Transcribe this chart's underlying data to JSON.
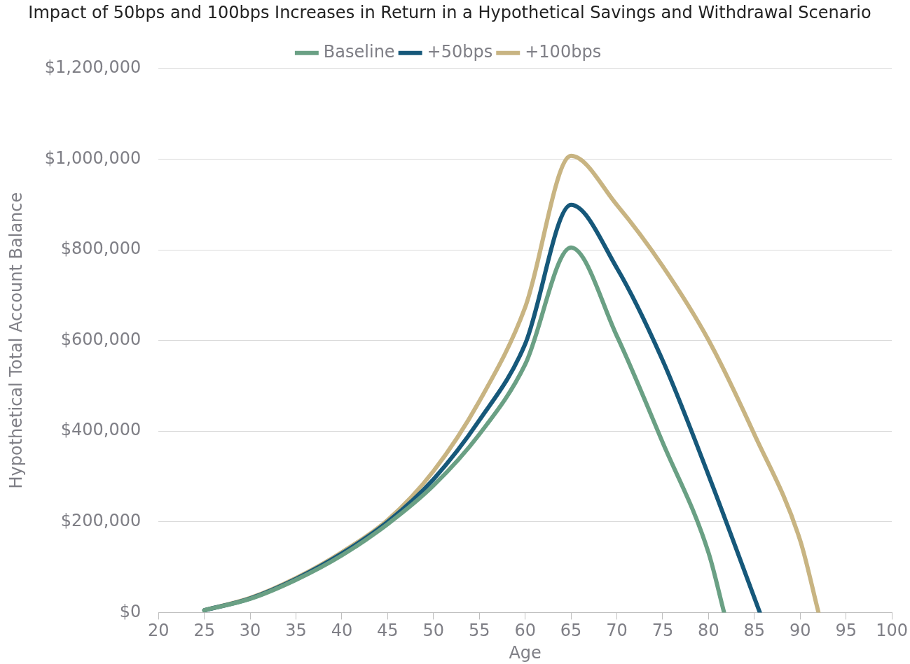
{
  "chart_data": {
    "type": "line",
    "title": "Impact of 50bps and 100bps Increases in Return in a Hypothetical Savings and Withdrawal Scenario",
    "xlabel": "Age",
    "ylabel": "Hypothetical Total Account Balance",
    "xlim": [
      20,
      100
    ],
    "xticks": [
      20,
      25,
      30,
      35,
      40,
      45,
      50,
      55,
      60,
      65,
      70,
      75,
      80,
      85,
      90,
      95,
      100
    ],
    "ylim": [
      0,
      1200000
    ],
    "yticks": [
      {
        "value": 0,
        "label": "$0"
      },
      {
        "value": 200000,
        "label": "$200,000"
      },
      {
        "value": 400000,
        "label": "$400,000"
      },
      {
        "value": 600000,
        "label": "$600,000"
      },
      {
        "value": 800000,
        "label": "$800,000"
      },
      {
        "value": 1000000,
        "label": "$1,000,000"
      },
      {
        "value": 1200000,
        "label": "$1,200,000"
      }
    ],
    "grid": "y",
    "legend": "top",
    "marker": "none",
    "line_style": "solid",
    "series": [
      {
        "name": "Baseline",
        "color": "#6aa084",
        "x": [
          25,
          30,
          35,
          40,
          45,
          50,
          55,
          60,
          65,
          70,
          75,
          80,
          81.7
        ],
        "values": [
          5000,
          30000,
          72000,
          126000,
          195000,
          280000,
          393000,
          547000,
          805000,
          610000,
          375000,
          132000,
          0
        ]
      },
      {
        "name": "+50bps",
        "color": "#16587a",
        "x": [
          25,
          30,
          35,
          40,
          45,
          50,
          55,
          60,
          65,
          70,
          75,
          80,
          85.6
        ],
        "values": [
          5000,
          31000,
          74000,
          130000,
          200000,
          294000,
          424000,
          592000,
          899000,
          760000,
          556000,
          303000,
          0
        ]
      },
      {
        "name": "+100bps",
        "color": "#c8b482",
        "x": [
          25,
          30,
          35,
          40,
          45,
          50,
          55,
          60,
          65,
          70,
          75,
          80,
          85,
          90,
          92
        ],
        "values": [
          5000,
          32000,
          76000,
          133000,
          204000,
          312000,
          466000,
          673000,
          1007000,
          899000,
          764000,
          601000,
          393000,
          159000,
          0
        ]
      }
    ]
  }
}
